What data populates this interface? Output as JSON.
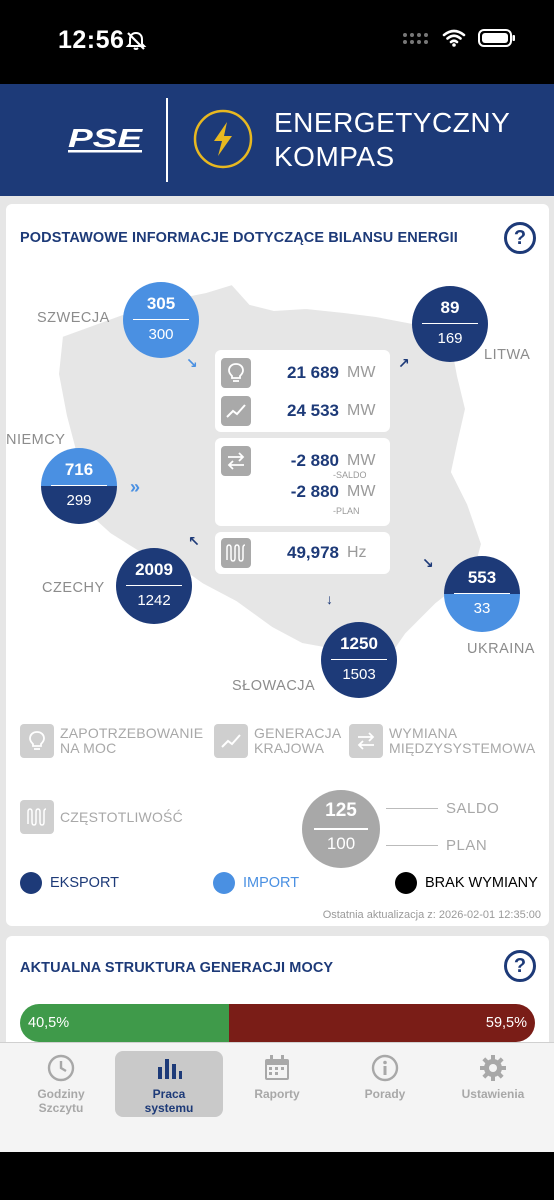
{
  "status_bar": {
    "time": "12:56"
  },
  "header": {
    "logo_text": "PSE",
    "title_line1": "ENERGETYCZNY",
    "title_line2": "KOMPAS"
  },
  "balance_card": {
    "title": "PODSTAWOWE INFORMACJE DOTYCZĄCE BILANSU ENERGII",
    "help": "?",
    "countries": [
      {
        "name": "SZWECJA",
        "export": "305",
        "import": "300",
        "dominant": "import"
      },
      {
        "name": "LITWA",
        "export": "89",
        "import": "169",
        "dominant": "export"
      },
      {
        "name": "NIEMCY",
        "export": "716",
        "import": "299",
        "dominant": "import"
      },
      {
        "name": "CZECHY",
        "export": "2009",
        "import": "1242",
        "dominant": "export"
      },
      {
        "name": "SŁOWACJA",
        "export": "1250",
        "import": "1503",
        "dominant": "export"
      },
      {
        "name": "UKRAINA",
        "export": "553",
        "import": "33",
        "dominant": "export"
      }
    ],
    "demand": {
      "value": "21 689",
      "unit": "MW"
    },
    "generation": {
      "value": "24 533",
      "unit": "MW"
    },
    "exchange_saldo": {
      "value": "-2 880",
      "unit": "MW",
      "sub": "-SALDO"
    },
    "exchange_plan": {
      "value": "-2 880",
      "unit": "MW",
      "sub": "-PLAN"
    },
    "frequency": {
      "value": "49,978",
      "unit": "Hz"
    },
    "legend": {
      "demand": [
        "ZAPOTRZEBOWANIE",
        "NA MOC"
      ],
      "generation": [
        "GENERACJA",
        "KRAJOWA"
      ],
      "exchange": [
        "WYMIANA",
        "MIĘDZYSYSTEMOWA"
      ],
      "frequency": "CZĘSTOTLIWOŚĆ",
      "example_top": "125",
      "example_bottom": "100",
      "saldo_label": "SALDO",
      "plan_label": "PLAN",
      "export_label": "EKSPORT",
      "import_label": "IMPORT",
      "no_exchange_label": "BRAK WYMIANY"
    },
    "colors": {
      "export": "#1d3a78",
      "import": "#4a90e2",
      "no_exchange": "#000000"
    },
    "last_update": "Ostatnia aktualizacja z: 2026-02-01 12:35:00"
  },
  "generation_card": {
    "title": "AKTUALNA STRUKTURA GENERACJI MOCY",
    "help": "?",
    "green_share": 40.5,
    "green_label": "40,5%",
    "other_label": "59,5%",
    "colors": {
      "green": "#3f9a4a",
      "other": "#7a1d17"
    }
  },
  "tab_bar": {
    "tabs": [
      {
        "line1": "Godziny",
        "line2": "Szczytu",
        "icon": "clock-icon"
      },
      {
        "line1": "Praca",
        "line2": "systemu",
        "icon": "bar-chart-icon"
      },
      {
        "line1": "Raporty",
        "line2": "",
        "icon": "calendar-icon"
      },
      {
        "line1": "Porady",
        "line2": "",
        "icon": "info-icon"
      },
      {
        "line1": "Ustawienia",
        "line2": "",
        "icon": "gear-icon"
      }
    ],
    "active_index": 1
  }
}
